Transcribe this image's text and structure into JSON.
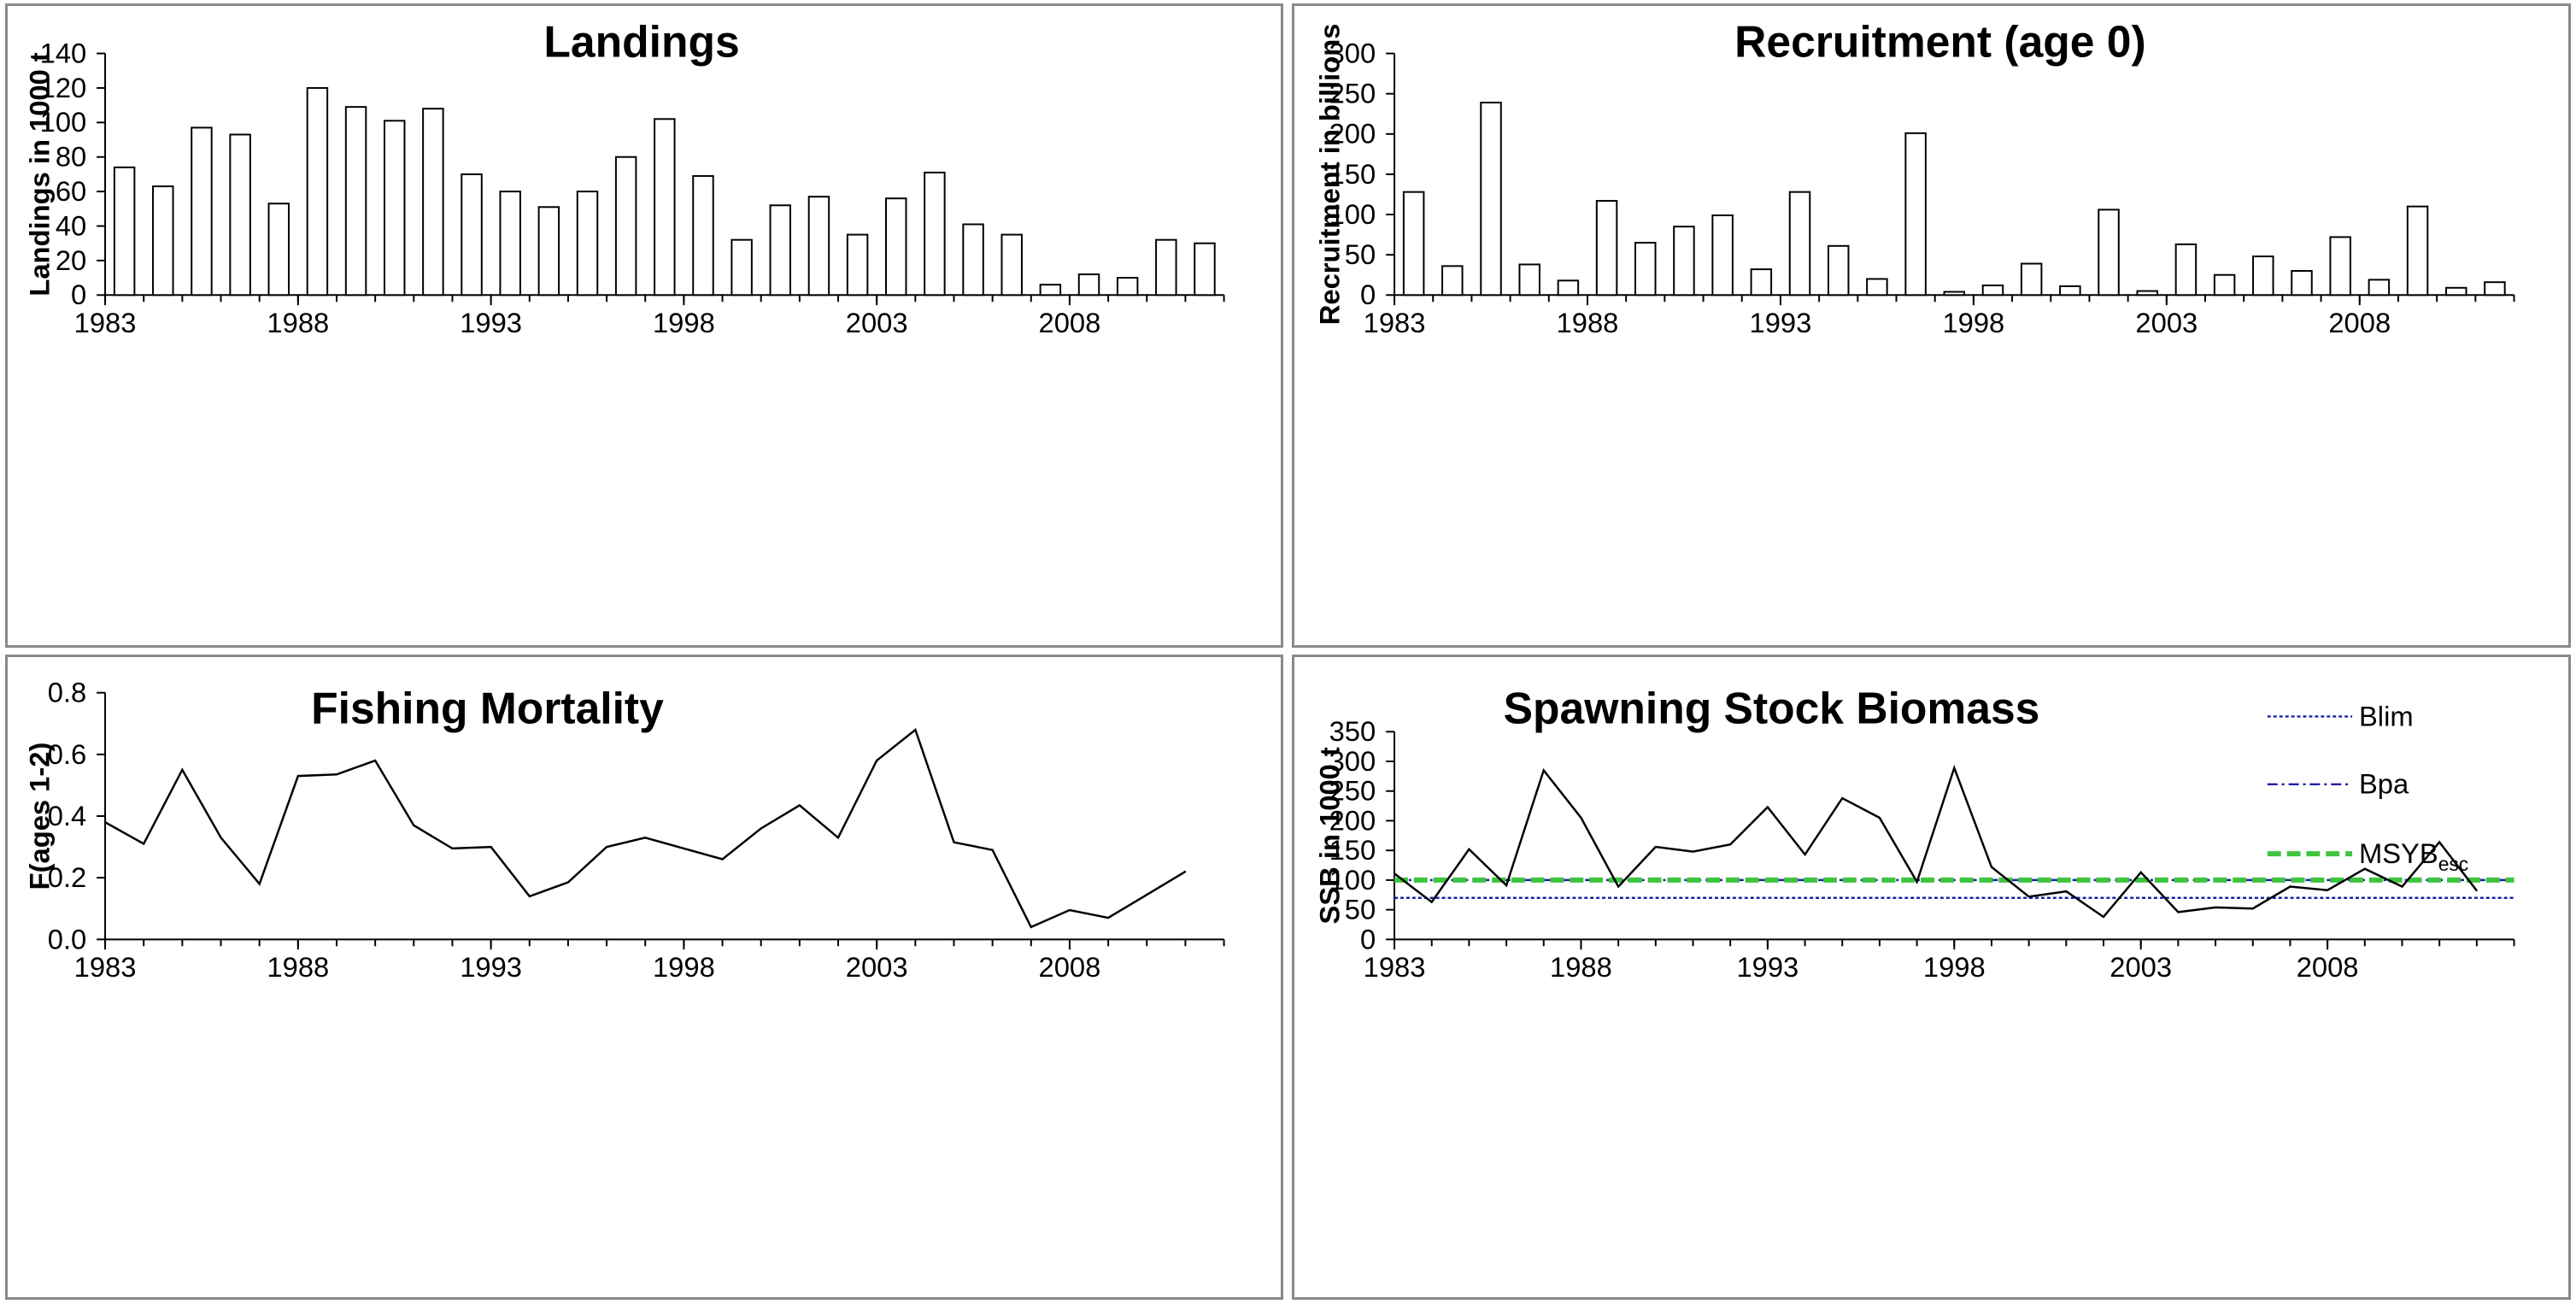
{
  "chart_data": [
    {
      "id": "landings",
      "type": "bar",
      "title": "Landings",
      "xlabel": "",
      "ylabel": "Landings in 1000 t",
      "ylim": [
        0,
        140
      ],
      "yticks": [
        "0",
        "20",
        "40",
        "60",
        "80",
        "100",
        "120",
        "140"
      ],
      "xticks": [
        "1983",
        "1988",
        "1993",
        "1998",
        "2003",
        "2008"
      ],
      "first_year": 1983,
      "values": [
        74,
        63,
        97,
        93,
        53,
        120,
        109,
        101,
        108,
        70,
        60,
        51,
        60,
        80,
        102,
        69,
        32,
        52,
        57,
        35,
        56,
        71,
        41,
        35,
        6,
        12,
        10,
        32,
        30
      ]
    },
    {
      "id": "recruitment",
      "type": "bar",
      "title": "Recruitment (age 0)",
      "xlabel": "",
      "ylabel": "Recruitment in billions",
      "ylim": [
        0,
        300
      ],
      "yticks": [
        "0",
        "50",
        "100",
        "150",
        "200",
        "250",
        "300"
      ],
      "xticks": [
        "1983",
        "1988",
        "1993",
        "1998",
        "2003",
        "2008"
      ],
      "first_year": 1983,
      "values": [
        128,
        36,
        239,
        38,
        18,
        117,
        65,
        85,
        99,
        32,
        128,
        61,
        20,
        201,
        4,
        12,
        39,
        11,
        106,
        5,
        63,
        25,
        48,
        30,
        72,
        19,
        110,
        9,
        16
      ]
    },
    {
      "id": "fishing_mortality",
      "type": "line",
      "title": "Fishing Mortality",
      "xlabel": "",
      "ylabel": "F(ages 1-2)",
      "ylim": [
        0,
        0.8
      ],
      "yticks": [
        "0.0",
        "0.2",
        "0.4",
        "0.6",
        "0.8"
      ],
      "xticks": [
        "1983",
        "1988",
        "1993",
        "1998",
        "2003",
        "2008"
      ],
      "first_year": 1983,
      "values": [
        0.38,
        0.31,
        0.55,
        0.33,
        0.18,
        0.53,
        0.535,
        0.58,
        0.37,
        0.295,
        0.3,
        0.14,
        0.185,
        0.3,
        0.33,
        0.295,
        0.26,
        0.36,
        0.435,
        0.33,
        0.58,
        0.68,
        0.315,
        0.29,
        0.04,
        0.095,
        0.07,
        0.145,
        0.22
      ]
    },
    {
      "id": "ssb",
      "type": "line",
      "title": "Spawning Stock Biomass",
      "xlabel": "",
      "ylabel": "SSB in 1000 t",
      "ylim": [
        0,
        350
      ],
      "yticks": [
        "0",
        "50",
        "100",
        "150",
        "200",
        "250",
        "300",
        "350"
      ],
      "xticks": [
        "1983",
        "1988",
        "1993",
        "1998",
        "2003",
        "2008"
      ],
      "first_year": 1983,
      "values": [
        111,
        63,
        152,
        91,
        285,
        205,
        89,
        156,
        148,
        160,
        223,
        143,
        238,
        205,
        97,
        289,
        122,
        72,
        81,
        38,
        113,
        46,
        54,
        52,
        89,
        83,
        119,
        89,
        164,
        82
      ],
      "reference_lines": [
        {
          "name": "Blim",
          "value": 70,
          "color": "#1f1fa8",
          "style": "dotted"
        },
        {
          "name": "Bpa",
          "value": 100,
          "color": "#1f1fa8",
          "style": "dashdot"
        },
        {
          "name": "MSYB",
          "name_sub": "esc",
          "value": 100,
          "color": "#3ec43e",
          "style": "dashed"
        }
      ],
      "legend_position": "top-right"
    }
  ]
}
